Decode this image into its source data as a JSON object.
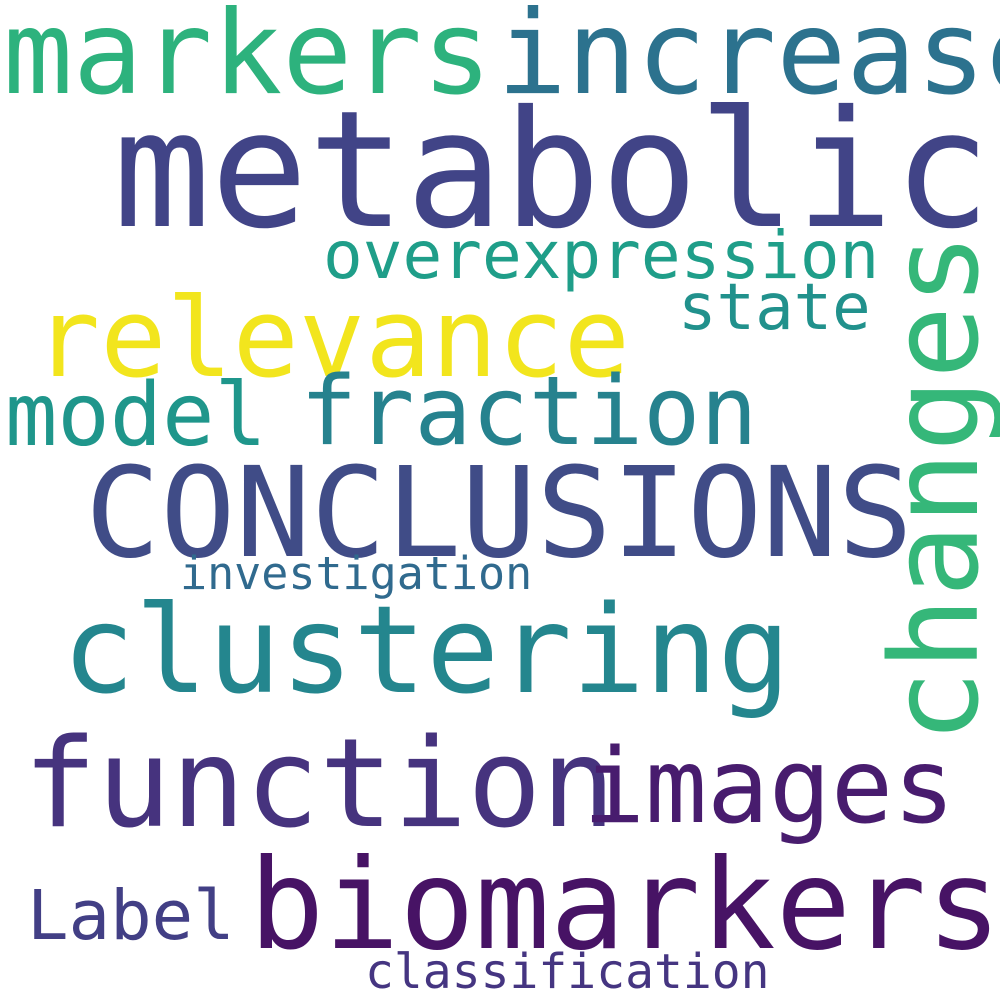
{
  "words": [
    {
      "id": "markers",
      "text": "markers",
      "color": "#2db27d"
    },
    {
      "id": "increase",
      "text": "increase",
      "color": "#2c728e"
    },
    {
      "id": "metabolic",
      "text": "metabolic",
      "color": "#414487"
    },
    {
      "id": "overexpression",
      "text": "overexpression",
      "color": "#1f9e89"
    },
    {
      "id": "state",
      "text": "state",
      "color": "#21918c"
    },
    {
      "id": "relevance",
      "text": "relevance",
      "color": "#f2e51d"
    },
    {
      "id": "model",
      "text": "model",
      "color": "#1f968b"
    },
    {
      "id": "fraction",
      "text": "fraction",
      "color": "#26828e"
    },
    {
      "id": "changes",
      "text": "changes",
      "color": "#35b779"
    },
    {
      "id": "conclusions",
      "text": "CONCLUSIONS",
      "color": "#404c87"
    },
    {
      "id": "investigation",
      "text": "investigation",
      "color": "#306a8e"
    },
    {
      "id": "clustering",
      "text": "clustering",
      "color": "#24868e"
    },
    {
      "id": "function",
      "text": "function",
      "color": "#46337e"
    },
    {
      "id": "images",
      "text": "images",
      "color": "#481c6e"
    },
    {
      "id": "biomarkers",
      "text": "biomarkers",
      "color": "#471365"
    },
    {
      "id": "label",
      "text": "Label",
      "color": "#423f85"
    },
    {
      "id": "classification",
      "text": "classification",
      "color": "#453581"
    }
  ]
}
